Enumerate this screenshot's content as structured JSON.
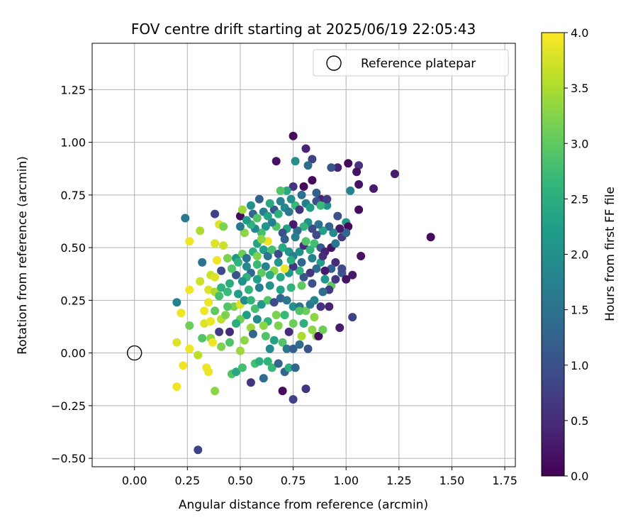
{
  "chart_data": {
    "type": "scatter",
    "title": "FOV centre drift starting at 2025/06/19 22:05:43",
    "xlabel": "Angular distance from reference (arcmin)",
    "ylabel": "Rotation from reference (arcmin)",
    "xlim": [
      -0.2,
      1.8
    ],
    "ylim": [
      -0.54,
      1.47
    ],
    "xticks": [
      0.0,
      0.25,
      0.5,
      0.75,
      1.0,
      1.25,
      1.5,
      1.75
    ],
    "xtick_labels": [
      "0.00",
      "0.25",
      "0.50",
      "0.75",
      "1.00",
      "1.25",
      "1.50",
      "1.75"
    ],
    "yticks": [
      -0.5,
      -0.25,
      0.0,
      0.25,
      0.5,
      0.75,
      1.0,
      1.25
    ],
    "ytick_labels": [
      "−0.50",
      "−0.25",
      "0.00",
      "0.25",
      "0.50",
      "0.75",
      "1.00",
      "1.25"
    ],
    "grid": true,
    "legend": {
      "placement": "top-right",
      "entries": [
        "Reference platepar"
      ]
    },
    "reference_point": {
      "x": 0.0,
      "y": 0.0,
      "name": "Reference platepar"
    },
    "colorbar": {
      "label": "Hours from first FF file",
      "colormap": "viridis",
      "range": [
        0.0,
        4.0
      ],
      "ticks": [
        0.0,
        0.5,
        1.0,
        1.5,
        2.0,
        2.5,
        3.0,
        3.5,
        4.0
      ],
      "tick_labels": [
        "0.0",
        "0.5",
        "1.0",
        "1.5",
        "2.0",
        "2.5",
        "3.0",
        "3.5",
        "4.0"
      ],
      "colors": [
        "#440154",
        "#482878",
        "#3e4989",
        "#31688e",
        "#26828e",
        "#1f9e89",
        "#35b779",
        "#6ece58",
        "#b5de2b",
        "#fde725"
      ]
    },
    "points": [
      [
        0.75,
        1.03,
        0.1
      ],
      [
        0.81,
        0.97,
        0.4
      ],
      [
        0.67,
        0.91,
        0.2
      ],
      [
        0.76,
        0.91,
        2.0
      ],
      [
        0.84,
        0.92,
        0.8
      ],
      [
        0.96,
        0.88,
        0.4
      ],
      [
        1.01,
        0.9,
        0.1
      ],
      [
        1.06,
        0.89,
        0.6
      ],
      [
        0.93,
        0.88,
        1.1
      ],
      [
        1.23,
        0.85,
        0.3
      ],
      [
        1.05,
        0.86,
        0.2
      ],
      [
        0.82,
        0.89,
        1.4
      ],
      [
        1.02,
        0.77,
        1.8
      ],
      [
        1.06,
        0.8,
        0.2
      ],
      [
        1.13,
        0.78,
        0.3
      ],
      [
        0.75,
        0.79,
        0.6
      ],
      [
        0.8,
        0.79,
        0.1
      ],
      [
        0.84,
        0.82,
        0.1
      ],
      [
        0.72,
        0.77,
        2.4
      ],
      [
        0.69,
        0.77,
        2.9
      ],
      [
        0.88,
        0.73,
        0.4
      ],
      [
        0.91,
        0.7,
        2.0
      ],
      [
        0.96,
        0.65,
        1.0
      ],
      [
        1.06,
        0.68,
        0.1
      ],
      [
        1.0,
        0.62,
        2.2
      ],
      [
        1.01,
        0.6,
        0.1
      ],
      [
        0.97,
        0.59,
        0.3
      ],
      [
        1.4,
        0.55,
        0.1
      ],
      [
        1.07,
        0.46,
        0.2
      ],
      [
        0.24,
        0.64,
        1.6
      ],
      [
        0.38,
        0.66,
        0.8
      ],
      [
        0.5,
        0.65,
        0.1
      ],
      [
        0.51,
        0.68,
        3.4
      ],
      [
        0.4,
        0.61,
        3.8
      ],
      [
        0.42,
        0.6,
        3.2
      ],
      [
        0.31,
        0.58,
        3.5
      ],
      [
        0.26,
        0.53,
        3.9
      ],
      [
        0.38,
        0.52,
        3.8
      ],
      [
        0.42,
        0.51,
        3.7
      ],
      [
        0.32,
        0.43,
        1.5
      ],
      [
        0.39,
        0.44,
        3.9
      ],
      [
        0.36,
        0.37,
        3.7
      ],
      [
        0.38,
        0.36,
        3.8
      ],
      [
        0.41,
        0.39,
        0.9
      ],
      [
        0.45,
        0.33,
        2.5
      ],
      [
        0.26,
        0.3,
        3.9
      ],
      [
        0.31,
        0.34,
        3.7
      ],
      [
        0.35,
        0.3,
        3.8
      ],
      [
        0.38,
        0.29,
        3.5
      ],
      [
        0.41,
        0.31,
        2.6
      ],
      [
        0.2,
        0.24,
        1.8
      ],
      [
        0.22,
        0.19,
        3.9
      ],
      [
        0.26,
        0.13,
        3.1
      ],
      [
        0.33,
        0.2,
        3.9
      ],
      [
        0.35,
        0.24,
        3.9
      ],
      [
        0.38,
        0.2,
        3.0
      ],
      [
        0.41,
        0.16,
        3.6
      ],
      [
        0.33,
        0.14,
        3.8
      ],
      [
        0.36,
        0.15,
        3.9
      ],
      [
        0.32,
        0.07,
        2.9
      ],
      [
        0.36,
        0.07,
        3.3
      ],
      [
        0.37,
        0.05,
        3.9
      ],
      [
        0.41,
        0.03,
        3.2
      ],
      [
        0.45,
        0.05,
        2.9
      ],
      [
        0.4,
        0.1,
        0.7
      ],
      [
        0.2,
        0.05,
        3.8
      ],
      [
        0.23,
        -0.06,
        3.9
      ],
      [
        0.26,
        0.02,
        3.9
      ],
      [
        0.3,
        -0.01,
        3.6
      ],
      [
        0.34,
        -0.07,
        3.9
      ],
      [
        0.35,
        -0.09,
        3.9
      ],
      [
        0.2,
        -0.16,
        3.9
      ],
      [
        0.38,
        -0.18,
        3.3
      ],
      [
        0.3,
        -0.46,
        0.8
      ],
      [
        0.46,
        -0.1,
        2.9
      ],
      [
        0.48,
        -0.09,
        2.4
      ],
      [
        0.51,
        -0.07,
        2.8
      ],
      [
        0.5,
        0.01,
        3.4
      ],
      [
        0.55,
        -0.14,
        0.6
      ],
      [
        0.57,
        -0.05,
        2.8
      ],
      [
        0.59,
        -0.04,
        2.5
      ],
      [
        0.61,
        -0.12,
        1.4
      ],
      [
        0.63,
        -0.04,
        2.6
      ],
      [
        0.65,
        -0.07,
        2.7
      ],
      [
        0.68,
        -0.05,
        1.3
      ],
      [
        0.7,
        -0.18,
        0.1
      ],
      [
        0.71,
        -0.09,
        1.3
      ],
      [
        0.73,
        -0.07,
        2.5
      ],
      [
        0.75,
        -0.22,
        0.8
      ],
      [
        0.76,
        -0.07,
        1.3
      ],
      [
        0.81,
        -0.17,
        0.6
      ],
      [
        0.64,
        0.02,
        1.9
      ],
      [
        0.66,
        0.06,
        2.3
      ],
      [
        0.7,
        0.05,
        2.9
      ],
      [
        0.72,
        0.02,
        1.6
      ],
      [
        0.75,
        0.02,
        1.2
      ],
      [
        0.78,
        0.04,
        1.4
      ],
      [
        0.82,
        0.02,
        1.0
      ],
      [
        0.86,
        0.08,
        3.3
      ],
      [
        0.87,
        0.08,
        0.1
      ],
      [
        0.89,
        0.11,
        3.1
      ],
      [
        0.84,
        0.11,
        3.3
      ],
      [
        0.8,
        0.14,
        2.5
      ],
      [
        0.75,
        0.14,
        3.1
      ],
      [
        0.73,
        0.1,
        0.5
      ],
      [
        0.71,
        0.18,
        2.7
      ],
      [
        0.67,
        0.18,
        3.2
      ],
      [
        0.63,
        0.15,
        2.6
      ],
      [
        0.61,
        0.13,
        3.3
      ],
      [
        0.58,
        0.16,
        1.9
      ],
      [
        0.55,
        0.12,
        3.4
      ],
      [
        0.53,
        0.18,
        2.2
      ],
      [
        0.5,
        0.16,
        3.1
      ],
      [
        0.48,
        0.14,
        2.5
      ],
      [
        0.45,
        0.1,
        0.5
      ],
      [
        0.43,
        0.18,
        3.2
      ],
      [
        0.47,
        0.22,
        3.2
      ],
      [
        0.5,
        0.23,
        3.8
      ],
      [
        0.52,
        0.25,
        1.9
      ],
      [
        0.55,
        0.25,
        2.6
      ],
      [
        0.57,
        0.21,
        2.8
      ],
      [
        0.6,
        0.23,
        2.1
      ],
      [
        0.63,
        0.25,
        2.9
      ],
      [
        0.66,
        0.24,
        0.9
      ],
      [
        0.69,
        0.26,
        1.3
      ],
      [
        0.72,
        0.25,
        1.6
      ],
      [
        0.75,
        0.22,
        2.0
      ],
      [
        0.78,
        0.22,
        1.5
      ],
      [
        0.81,
        0.2,
        3.1
      ],
      [
        0.83,
        0.23,
        1.6
      ],
      [
        0.85,
        0.25,
        1.8
      ],
      [
        0.88,
        0.22,
        0.6
      ],
      [
        0.92,
        0.22,
        0.4
      ],
      [
        0.97,
        0.12,
        0.3
      ],
      [
        1.03,
        0.17,
        0.8
      ],
      [
        0.93,
        0.32,
        3.0
      ],
      [
        0.9,
        0.35,
        2.1
      ],
      [
        0.92,
        0.3,
        0.7
      ],
      [
        0.95,
        0.35,
        0.6
      ],
      [
        0.98,
        0.38,
        1.1
      ],
      [
        1.0,
        0.35,
        0.2
      ],
      [
        1.03,
        0.37,
        0.3
      ],
      [
        0.98,
        0.4,
        0.9
      ],
      [
        0.95,
        0.43,
        0.5
      ],
      [
        0.93,
        0.4,
        1.2
      ],
      [
        0.9,
        0.39,
        0.3
      ],
      [
        0.88,
        0.43,
        2.2
      ],
      [
        0.86,
        0.4,
        1.4
      ],
      [
        0.83,
        0.38,
        0.6
      ],
      [
        0.8,
        0.36,
        1.1
      ],
      [
        0.78,
        0.39,
        2.6
      ],
      [
        0.75,
        0.41,
        0.6
      ],
      [
        0.73,
        0.38,
        2.1
      ],
      [
        0.71,
        0.4,
        3.9
      ],
      [
        0.69,
        0.36,
        2.4
      ],
      [
        0.66,
        0.39,
        3.3
      ],
      [
        0.64,
        0.37,
        2.5
      ],
      [
        0.62,
        0.41,
        1.8
      ],
      [
        0.6,
        0.38,
        3.0
      ],
      [
        0.58,
        0.35,
        2.2
      ],
      [
        0.55,
        0.38,
        1.3
      ],
      [
        0.53,
        0.36,
        2.6
      ],
      [
        0.51,
        0.34,
        2.0
      ],
      [
        0.48,
        0.37,
        1.0
      ],
      [
        0.46,
        0.4,
        2.9
      ],
      [
        0.48,
        0.45,
        2.1
      ],
      [
        0.51,
        0.47,
        3.1
      ],
      [
        0.53,
        0.45,
        1.5
      ],
      [
        0.56,
        0.48,
        2.5
      ],
      [
        0.58,
        0.46,
        3.2
      ],
      [
        0.61,
        0.49,
        2.2
      ],
      [
        0.63,
        0.46,
        1.5
      ],
      [
        0.65,
        0.49,
        2.8
      ],
      [
        0.68,
        0.47,
        0.9
      ],
      [
        0.7,
        0.5,
        2.4
      ],
      [
        0.73,
        0.48,
        2.1
      ],
      [
        0.75,
        0.46,
        1.7
      ],
      [
        0.78,
        0.48,
        2.0
      ],
      [
        0.8,
        0.51,
        0.5
      ],
      [
        0.83,
        0.49,
        2.6
      ],
      [
        0.85,
        0.52,
        2.8
      ],
      [
        0.88,
        0.5,
        1.1
      ],
      [
        0.9,
        0.48,
        0.4
      ],
      [
        0.93,
        0.5,
        0.2
      ],
      [
        0.95,
        0.52,
        1.6
      ],
      [
        0.98,
        0.55,
        0.7
      ],
      [
        1.0,
        0.57,
        1.3
      ],
      [
        0.97,
        0.59,
        0.3
      ],
      [
        0.94,
        0.57,
        1.9
      ],
      [
        0.92,
        0.6,
        1.3
      ],
      [
        0.89,
        0.58,
        2.3
      ],
      [
        0.87,
        0.61,
        1.5
      ],
      [
        0.84,
        0.59,
        0.9
      ],
      [
        0.82,
        0.62,
        2.0
      ],
      [
        0.8,
        0.6,
        2.6
      ],
      [
        0.77,
        0.58,
        1.4
      ],
      [
        0.75,
        0.61,
        0.3
      ],
      [
        0.72,
        0.59,
        2.3
      ],
      [
        0.7,
        0.57,
        1.0
      ],
      [
        0.67,
        0.6,
        2.9
      ],
      [
        0.65,
        0.62,
        1.7
      ],
      [
        0.62,
        0.6,
        2.1
      ],
      [
        0.6,
        0.57,
        2.8
      ],
      [
        0.57,
        0.59,
        1.9
      ],
      [
        0.55,
        0.61,
        2.6
      ],
      [
        0.52,
        0.57,
        3.3
      ],
      [
        0.5,
        0.6,
        1.6
      ],
      [
        0.53,
        0.63,
        2.2
      ],
      [
        0.56,
        0.66,
        1.3
      ],
      [
        0.58,
        0.64,
        2.9
      ],
      [
        0.61,
        0.67,
        1.7
      ],
      [
        0.63,
        0.65,
        2.3
      ],
      [
        0.66,
        0.68,
        1.1
      ],
      [
        0.68,
        0.66,
        2.5
      ],
      [
        0.71,
        0.69,
        1.9
      ],
      [
        0.73,
        0.67,
        1.6
      ],
      [
        0.76,
        0.7,
        2.7
      ],
      [
        0.78,
        0.68,
        0.6
      ],
      [
        0.81,
        0.71,
        1.7
      ],
      [
        0.83,
        0.69,
        2.2
      ],
      [
        0.86,
        0.72,
        1.0
      ],
      [
        0.88,
        0.7,
        2.7
      ],
      [
        0.91,
        0.73,
        0.7
      ],
      [
        0.86,
        0.76,
        1.2
      ],
      [
        0.79,
        0.75,
        1.5
      ],
      [
        0.74,
        0.73,
        2.0
      ],
      [
        0.69,
        0.72,
        1.8
      ],
      [
        0.64,
        0.71,
        2.4
      ],
      [
        0.59,
        0.73,
        1.2
      ],
      [
        0.55,
        0.7,
        2.0
      ],
      [
        0.58,
        0.52,
        2.3
      ],
      [
        0.63,
        0.53,
        3.9
      ],
      [
        0.6,
        0.54,
        3.3
      ],
      [
        0.71,
        0.54,
        1.2
      ],
      [
        0.76,
        0.55,
        1.7
      ],
      [
        0.81,
        0.53,
        2.9
      ],
      [
        0.86,
        0.56,
        0.9
      ],
      [
        0.68,
        0.43,
        2.1
      ],
      [
        0.74,
        0.44,
        2.5
      ],
      [
        0.79,
        0.43,
        1.3
      ],
      [
        0.84,
        0.45,
        1.8
      ],
      [
        0.89,
        0.46,
        0.5
      ],
      [
        0.58,
        0.42,
        2.7
      ],
      [
        0.53,
        0.41,
        1.9
      ],
      [
        0.49,
        0.43,
        2.6
      ],
      [
        0.44,
        0.45,
        3.2
      ],
      [
        0.44,
        0.29,
        2.7
      ],
      [
        0.49,
        0.28,
        2.2
      ],
      [
        0.54,
        0.3,
        2.6
      ],
      [
        0.59,
        0.31,
        1.7
      ],
      [
        0.64,
        0.32,
        2.0
      ],
      [
        0.69,
        0.3,
        2.3
      ],
      [
        0.74,
        0.31,
        2.6
      ],
      [
        0.79,
        0.32,
        3.0
      ],
      [
        0.84,
        0.33,
        1.0
      ],
      [
        0.89,
        0.29,
        1.4
      ],
      [
        0.44,
        0.22,
        2.9
      ],
      [
        0.4,
        0.27,
        2.8
      ],
      [
        0.62,
        0.08,
        2.9
      ],
      [
        0.56,
        0.09,
        1.3
      ],
      [
        0.52,
        0.06,
        3.3
      ],
      [
        0.79,
        0.08,
        3.5
      ],
      [
        0.68,
        0.13,
        3.2
      ],
      [
        0.78,
        0.2,
        2.9
      ],
      [
        0.85,
        0.17,
        3.3
      ]
    ]
  }
}
